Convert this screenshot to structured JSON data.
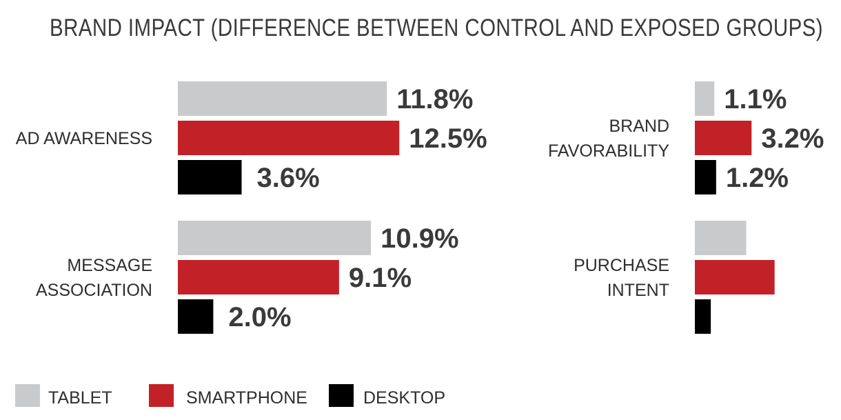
{
  "chart_data": {
    "type": "bar",
    "orientation": "horizontal",
    "title": "BRAND IMPACT (DIFFERENCE BETWEEN CONTROL AND EXPOSED GROUPS)",
    "series": [
      {
        "name": "TABLET",
        "color": "#c9cacc"
      },
      {
        "name": "SMARTPHONE",
        "color": "#c22127"
      },
      {
        "name": "DESKTOP",
        "color": "#000000"
      }
    ],
    "legend_position": "bottom-left",
    "panels": [
      {
        "groups": [
          {
            "label_lines": [
              "AD AWARENESS"
            ],
            "values": [
              11.8,
              12.5,
              3.6
            ],
            "labels": [
              "11.8%",
              "12.5%",
              "3.6%"
            ]
          },
          {
            "label_lines": [
              "MESSAGE",
              "ASSOCIATION"
            ],
            "values": [
              10.9,
              9.1,
              2.0
            ],
            "labels": [
              "10.9%",
              "9.1%",
              "2.0%"
            ]
          }
        ]
      },
      {
        "groups": [
          {
            "label_lines": [
              "BRAND",
              "FAVORABILITY"
            ],
            "values": [
              1.1,
              3.2,
              1.2
            ],
            "labels": [
              "1.1%",
              "3.2%",
              "1.2%"
            ]
          },
          {
            "label_lines": [
              "PURCHASE",
              "INTENT"
            ],
            "values": [
              2.9,
              4.5,
              0.9
            ],
            "labels": [
              "",
              "",
              ""
            ]
          }
        ]
      }
    ]
  }
}
